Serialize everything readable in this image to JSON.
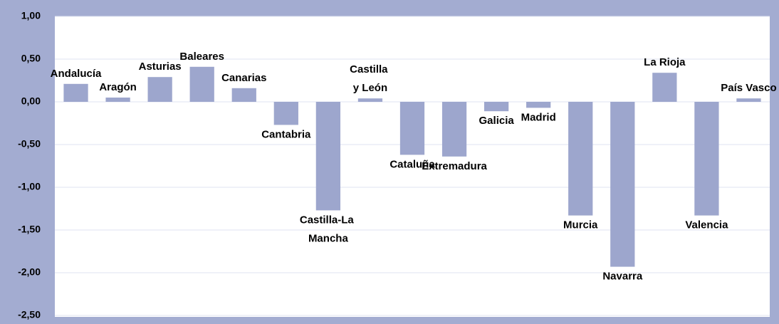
{
  "chart_data": {
    "type": "bar",
    "categories": [
      "Andalucía",
      "Aragón",
      "Asturias",
      "Baleares",
      "Canarias",
      "Cantabria",
      "Castilla-La Mancha",
      "Castilla y León",
      "Cataluña",
      "Extremadura",
      "Galicia",
      "Madrid",
      "Murcia",
      "Navarra",
      "La Rioja",
      "Valencia",
      "País Vasco"
    ],
    "values": [
      0.21,
      0.05,
      0.29,
      0.41,
      0.16,
      -0.27,
      -1.27,
      0.04,
      -0.62,
      -0.64,
      -0.11,
      -0.07,
      -1.33,
      -1.93,
      0.34,
      -1.33,
      0.04
    ],
    "color": "#9da6cd",
    "ylim": [
      -2.5,
      1.0
    ],
    "yticks": [
      {
        "value": -2.5,
        "label": "-2,50"
      },
      {
        "value": -2.0,
        "label": "-2,00"
      },
      {
        "value": -1.5,
        "label": "-1,50"
      },
      {
        "value": -1.0,
        "label": "-1,00"
      },
      {
        "value": -0.5,
        "label": "-0,50"
      },
      {
        "value": 0,
        "label": "0,00"
      },
      {
        "value": 0.5,
        "label": "0,50"
      },
      {
        "value": 1.0,
        "label": "1,00"
      }
    ],
    "grid": true
  }
}
